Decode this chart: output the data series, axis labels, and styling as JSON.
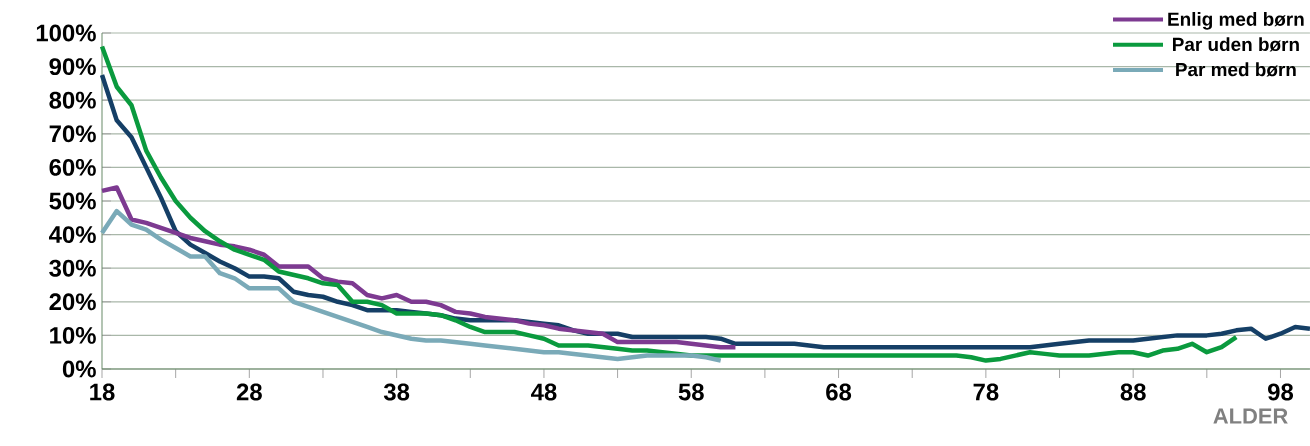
{
  "chart_data": {
    "type": "line",
    "xlabel": "ALDER",
    "xlim": [
      18,
      100
    ],
    "ylim": [
      0,
      100
    ],
    "xticks": [
      18,
      {
        "value": 23,
        "label": null
      },
      28,
      {
        "value": 33,
        "label": null
      },
      38,
      {
        "value": 43,
        "label": null
      },
      48,
      {
        "value": 53,
        "label": null
      },
      58,
      {
        "value": 63,
        "label": null
      },
      68,
      {
        "value": 73,
        "label": null
      },
      78,
      {
        "value": 83,
        "label": null
      },
      88,
      {
        "value": 93,
        "label": null
      },
      98
    ],
    "yticks": [
      {
        "value": 0,
        "label": "0%"
      },
      {
        "value": 10,
        "label": "10%"
      },
      {
        "value": 20,
        "label": "20%"
      },
      {
        "value": 30,
        "label": "30%"
      },
      {
        "value": 40,
        "label": "40%"
      },
      {
        "value": 50,
        "label": "50%"
      },
      {
        "value": 60,
        "label": "60%"
      },
      {
        "value": 70,
        "label": "70%"
      },
      {
        "value": 80,
        "label": "80%"
      },
      {
        "value": 90,
        "label": "90%"
      },
      {
        "value": 100,
        "label": "100%"
      }
    ],
    "grid": "y",
    "legend": "top right",
    "marker": "none",
    "line_style": "solid",
    "series": [
      {
        "color": "#153f66",
        "x": [
          18,
          19,
          20,
          21,
          22,
          23,
          24,
          25,
          26,
          27,
          28,
          29,
          30,
          31,
          32,
          33,
          34,
          35,
          36,
          37,
          38,
          39,
          40,
          41,
          42,
          43,
          44,
          45,
          46,
          47,
          48,
          49,
          50,
          51,
          52,
          53,
          54,
          55,
          56,
          57,
          58,
          59,
          60,
          61,
          62,
          63,
          64,
          65,
          66,
          67,
          68,
          69,
          70,
          71,
          72,
          73,
          74,
          75,
          76,
          77,
          78,
          79,
          80,
          81,
          82,
          83,
          84,
          85,
          86,
          87,
          88,
          89,
          90,
          91,
          92,
          93,
          94,
          95,
          96,
          97,
          98,
          99,
          100
        ],
        "values": [
          87.5,
          74,
          69,
          60,
          51,
          41,
          37,
          34.5,
          32,
          30,
          27.5,
          27.5,
          27,
          23,
          22,
          21.5,
          20,
          19,
          17.5,
          17.5,
          17.5,
          17,
          16.5,
          16,
          15,
          14.5,
          14.5,
          14.5,
          14.5,
          14,
          13.5,
          13,
          11.5,
          10.5,
          10.5,
          10.5,
          9.5,
          9.5,
          9.5,
          9.5,
          9.5,
          9.5,
          9,
          7.5,
          7.5,
          7.5,
          7.5,
          7.5,
          7,
          6.5,
          6.5,
          6.5,
          6.5,
          6.5,
          6.5,
          6.5,
          6.5,
          6.5,
          6.5,
          6.5,
          6.5,
          6.5,
          6.5,
          6.5,
          7,
          7.5,
          8,
          8.5,
          8.5,
          8.5,
          8.5,
          9,
          9.5,
          10,
          10,
          10,
          10.5,
          11.5,
          12,
          9,
          10.5,
          12.5,
          12
        ]
      },
      {
        "name": "Enlig med børn",
        "color": "#7d3a91",
        "x": [
          18,
          19,
          20,
          21,
          22,
          23,
          24,
          25,
          26,
          27,
          28,
          29,
          30,
          31,
          32,
          33,
          34,
          35,
          36,
          37,
          38,
          39,
          40,
          41,
          42,
          43,
          44,
          45,
          46,
          47,
          48,
          49,
          50,
          51,
          52,
          53,
          54,
          55,
          56,
          57,
          58,
          59,
          60,
          61
        ],
        "values": [
          53,
          54,
          44.5,
          43.5,
          42,
          40.5,
          39,
          38,
          37,
          36.5,
          35.5,
          34,
          30.5,
          30.5,
          30.5,
          27,
          26,
          25.5,
          22,
          21,
          22,
          20,
          20,
          19,
          17,
          16.5,
          15.5,
          15,
          14.5,
          13.5,
          13,
          12,
          11.5,
          11,
          10.5,
          8,
          8,
          8,
          8,
          8,
          7.5,
          7,
          6.5,
          6.5
        ]
      },
      {
        "name": "Par uden børn",
        "color": "#0a9a3e",
        "x": [
          18,
          19,
          20,
          21,
          22,
          23,
          24,
          25,
          26,
          27,
          28,
          29,
          30,
          31,
          32,
          33,
          34,
          35,
          36,
          37,
          38,
          39,
          40,
          41,
          42,
          43,
          44,
          45,
          46,
          47,
          48,
          49,
          50,
          51,
          52,
          53,
          54,
          55,
          56,
          57,
          58,
          59,
          60,
          61,
          62,
          63,
          64,
          65,
          66,
          67,
          68,
          69,
          70,
          71,
          72,
          73,
          74,
          75,
          76,
          77,
          78,
          79,
          80,
          81,
          82,
          83,
          84,
          85,
          86,
          87,
          88,
          89,
          90,
          91,
          92,
          93,
          94,
          95
        ],
        "values": [
          96,
          84,
          78.5,
          65,
          57,
          50,
          45,
          41,
          38,
          35.5,
          34,
          32.5,
          29,
          28,
          27,
          25.5,
          25,
          20,
          20,
          19,
          16.5,
          16.5,
          16.5,
          16,
          14.5,
          12.5,
          11,
          11,
          11,
          10,
          9,
          7,
          7,
          7,
          6.5,
          6,
          5.5,
          5.5,
          5,
          4.5,
          4,
          4,
          4,
          4,
          4,
          4,
          4,
          4,
          4,
          4,
          4,
          4,
          4,
          4,
          4,
          4,
          4,
          4,
          4,
          3.5,
          2.5,
          3,
          4,
          5,
          4.5,
          4,
          4,
          4,
          4.5,
          5,
          5,
          4,
          5.5,
          6,
          7.5,
          5,
          6.5,
          9.5
        ]
      },
      {
        "name": "Par med børn",
        "color": "#7aaab8",
        "x": [
          18,
          19,
          20,
          21,
          22,
          23,
          24,
          25,
          26,
          27,
          28,
          29,
          30,
          31,
          32,
          33,
          34,
          35,
          36,
          37,
          38,
          39,
          40,
          41,
          42,
          43,
          44,
          45,
          46,
          47,
          48,
          49,
          50,
          51,
          52,
          53,
          54,
          55,
          56,
          57,
          58,
          59,
          60
        ],
        "values": [
          40.5,
          47,
          43,
          41.5,
          38.5,
          36,
          33.5,
          33.5,
          28.5,
          27,
          24,
          24,
          24,
          20,
          18.5,
          17,
          15.5,
          14,
          12.5,
          11,
          10,
          9,
          8.5,
          8.5,
          8,
          7.5,
          7,
          6.5,
          6,
          5.5,
          5,
          5,
          4.5,
          4,
          3.5,
          3,
          3.5,
          4,
          4,
          4,
          4,
          3.5,
          2.5
        ]
      }
    ]
  }
}
